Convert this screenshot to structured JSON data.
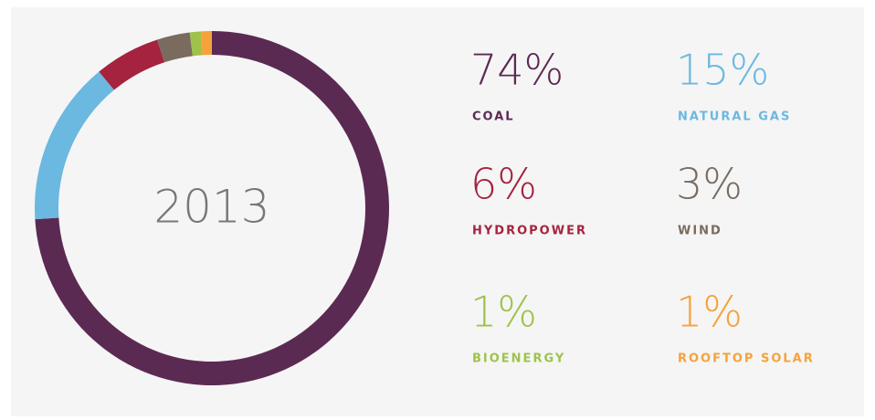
{
  "chart_data": {
    "type": "pie",
    "donut": true,
    "center_label": "2013",
    "categories": [
      "COAL",
      "NATURAL GAS",
      "HYDROPOWER",
      "WIND",
      "BIOENERGY",
      "ROOFTOP SOLAR"
    ],
    "values": [
      74,
      15,
      6,
      3,
      1,
      1
    ],
    "value_labels": [
      "74%",
      "15%",
      "6%",
      "3%",
      "1%",
      "1%"
    ],
    "colors": [
      "#5b2a53",
      "#6bb8e0",
      "#a5233f",
      "#7a6b5f",
      "#9fc24b",
      "#f5a23b"
    ]
  }
}
